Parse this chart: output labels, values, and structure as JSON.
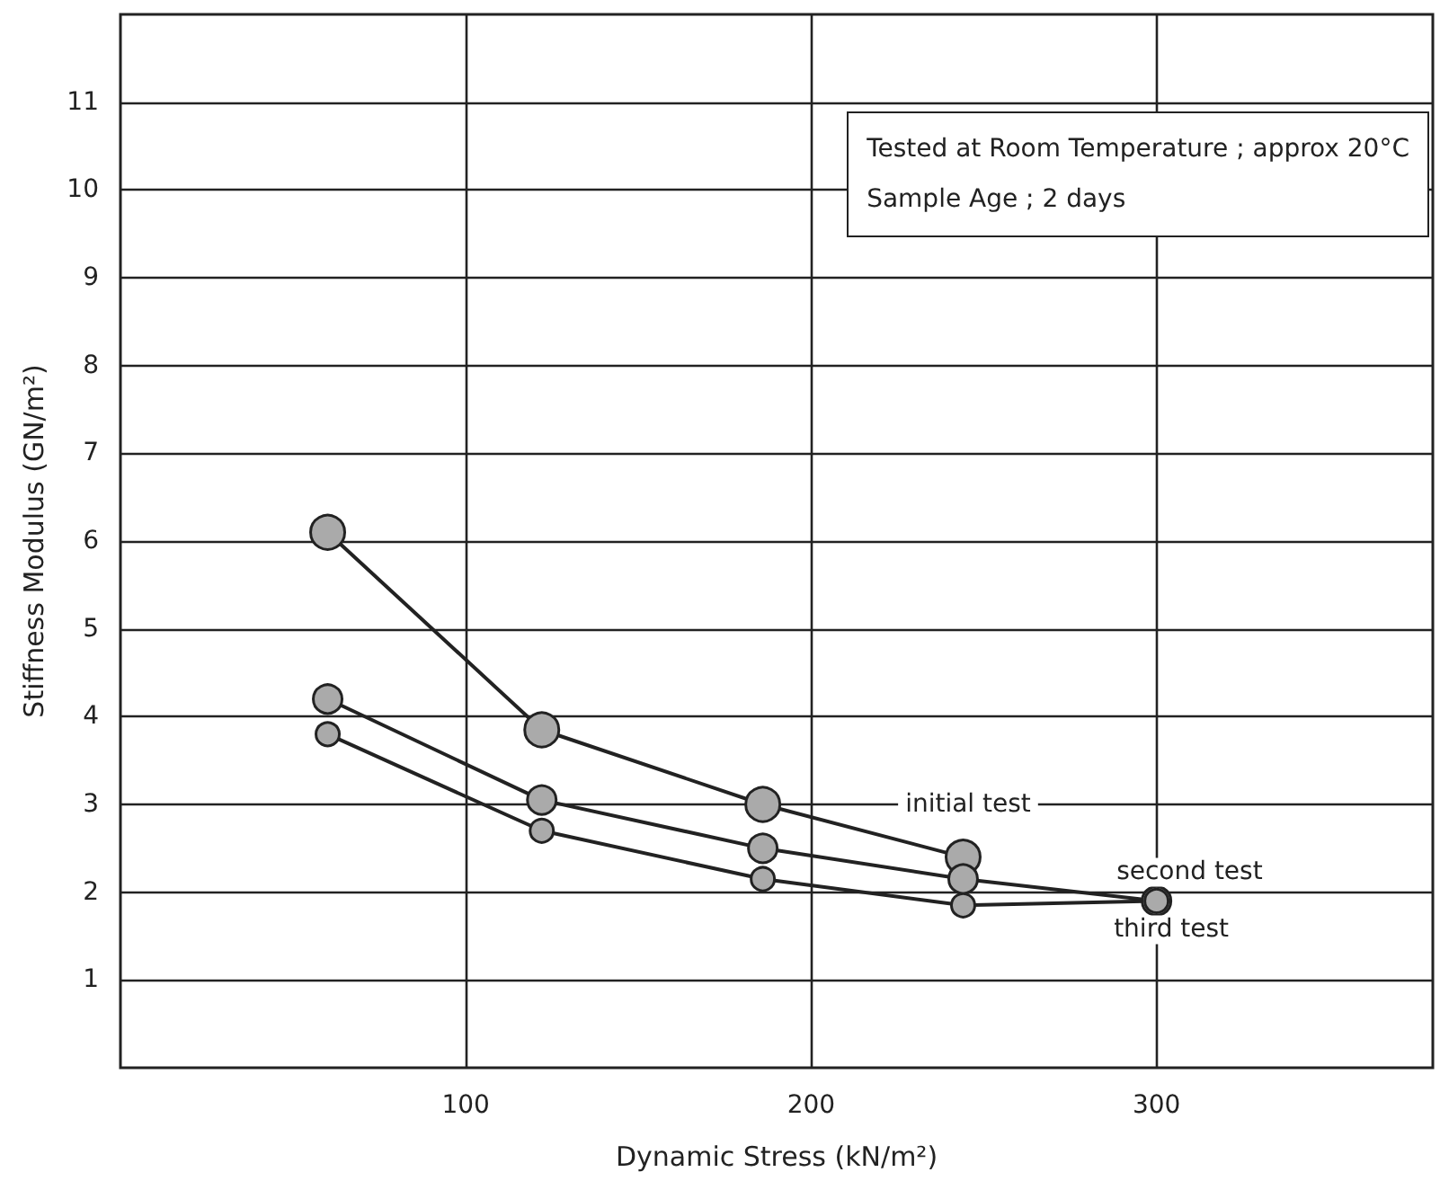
{
  "chart_data": {
    "type": "line",
    "xlabel": "Dynamic Stress (kN/m²)",
    "ylabel": "Stiffness Modulus (GN/m²)",
    "annotations": [
      "Tested at Room Temperature ; approx 20°C",
      "Sample Age ; 2 days"
    ],
    "series": [
      {
        "name": "initial test",
        "color": "#222222",
        "x": [
          60,
          122,
          186,
          244
        ],
        "values": [
          6.1,
          3.85,
          3.0,
          2.4
        ]
      },
      {
        "name": "second test",
        "color": "#222222",
        "x": [
          60,
          122,
          186,
          244,
          300
        ],
        "values": [
          4.2,
          3.05,
          2.5,
          2.15,
          1.9
        ]
      },
      {
        "name": "third test",
        "color": "#222222",
        "x": [
          60,
          122,
          186,
          244,
          300
        ],
        "values": [
          3.8,
          2.7,
          2.15,
          1.85,
          1.9
        ]
      }
    ],
    "xlim": [
      0,
      380
    ],
    "xticks": [
      100,
      200,
      300
    ],
    "ylim": [
      0,
      12
    ],
    "yticks": [
      1,
      2,
      3,
      4,
      5,
      6,
      7,
      8,
      9,
      10,
      11
    ],
    "grid": true,
    "legend": false,
    "marker": "circle",
    "line_style": "solid"
  }
}
